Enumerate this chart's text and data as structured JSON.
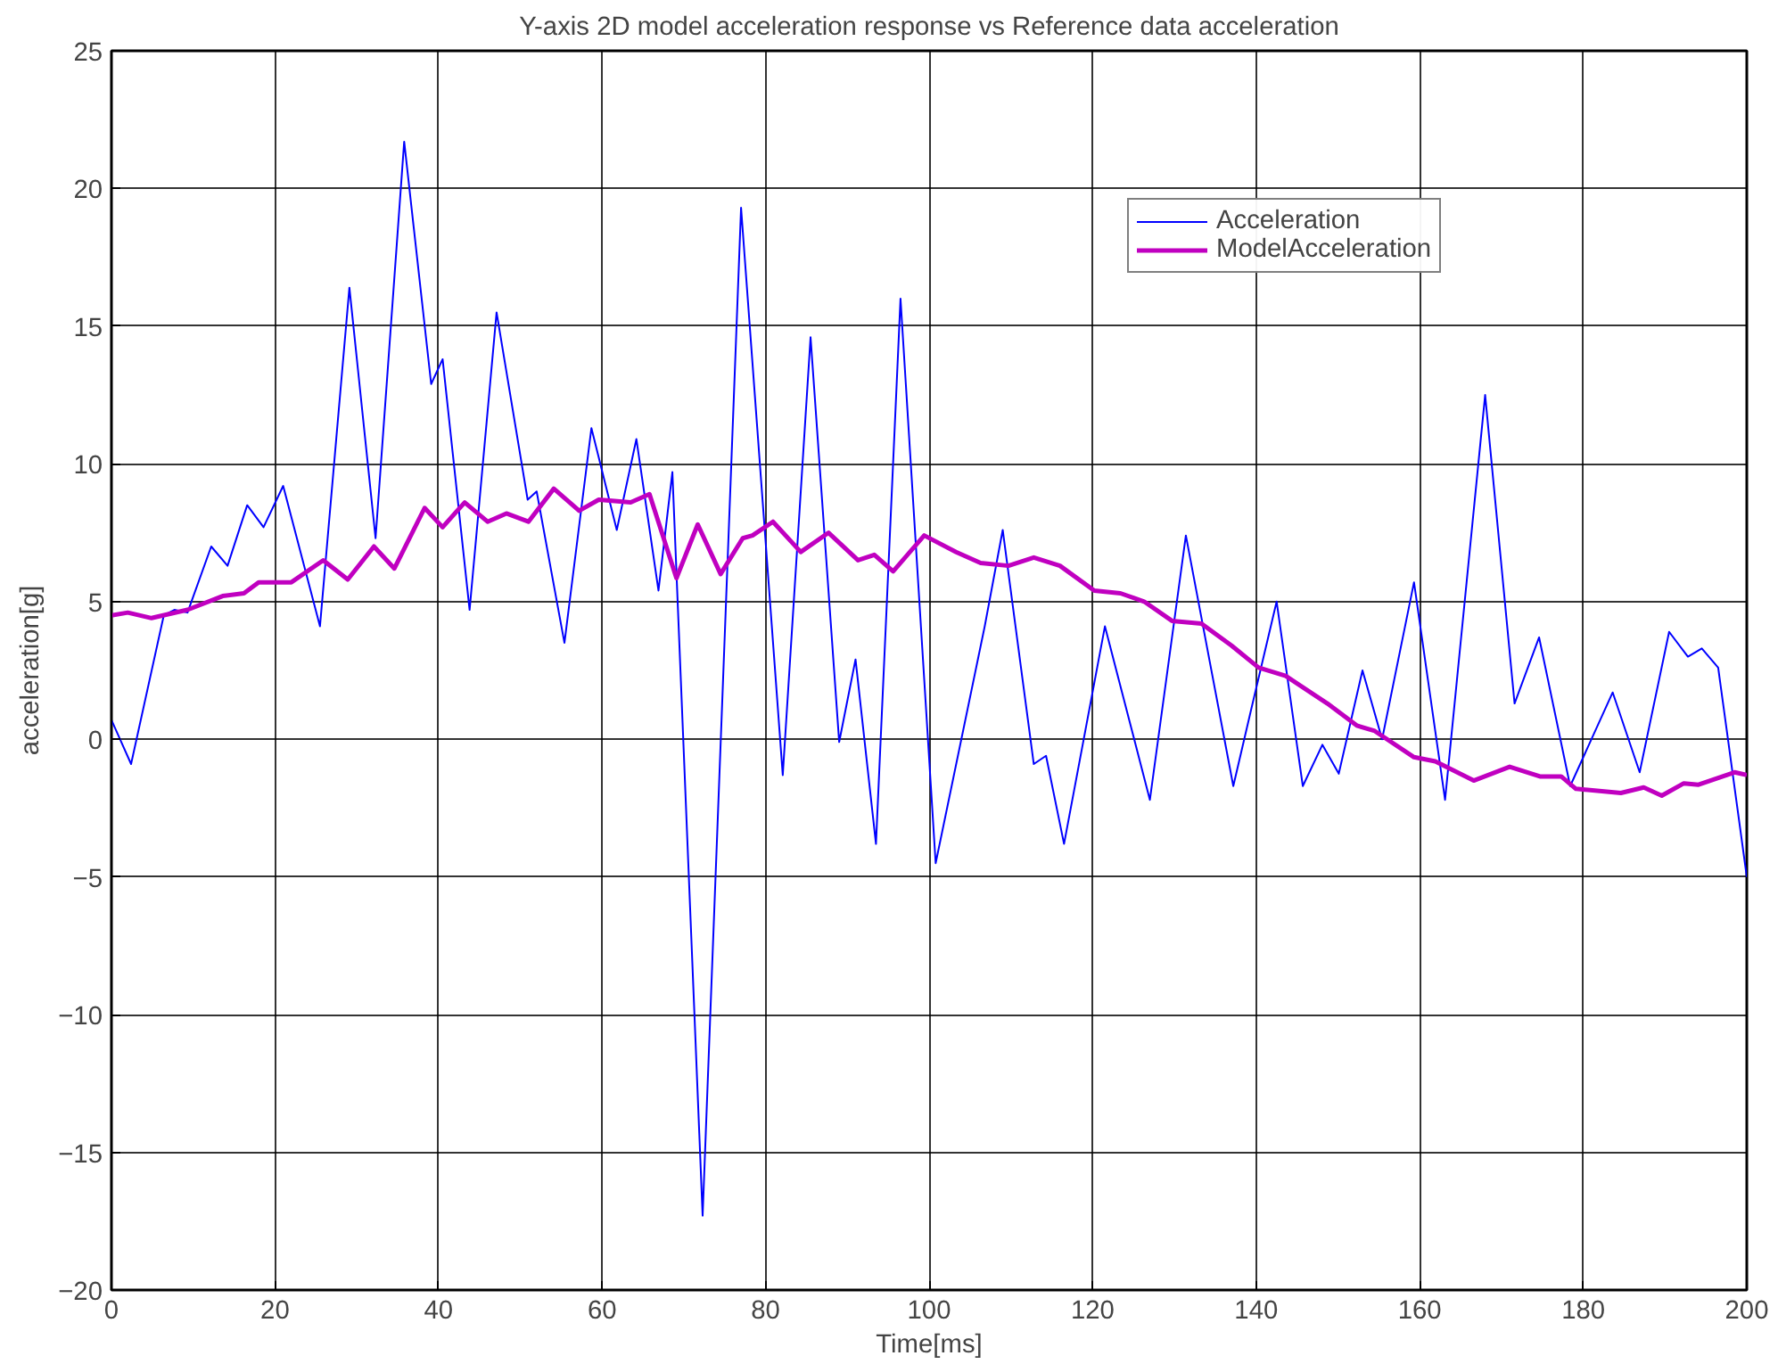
{
  "chart_data": {
    "type": "line",
    "title": "Y-axis 2D model acceleration response vs Reference data acceleration",
    "xlabel": "Time[ms]",
    "ylabel": "acceleration[g]",
    "xlim": [
      0,
      200
    ],
    "ylim": [
      -20,
      25
    ],
    "xticks": [
      0,
      20,
      40,
      60,
      80,
      100,
      120,
      140,
      160,
      180,
      200
    ],
    "yticks": [
      -20,
      -15,
      -10,
      -5,
      0,
      5,
      10,
      15,
      20,
      25
    ],
    "grid": true,
    "legend": "top right",
    "marker": "none",
    "line_style": "solid",
    "series": [
      {
        "name": "Acceleration",
        "color": "#0000ff",
        "x": [
          0,
          2.4,
          6.4,
          7.7,
          9.3,
          12.2,
          14.2,
          16.6,
          18.6,
          21.0,
          25.5,
          29.1,
          32.3,
          35.8,
          39.1,
          40.5,
          43.8,
          47.1,
          50.9,
          52.0,
          55.4,
          58.7,
          61.8,
          64.2,
          66.9,
          68.6,
          72.3,
          77.0,
          82.1,
          85.5,
          89.0,
          91.0,
          93.5,
          96.5,
          100.8,
          106.8,
          109.0,
          112.8,
          114.3,
          116.5,
          121.5,
          127.0,
          131.4,
          137.2,
          139.4,
          142.5,
          145.7,
          148.1,
          150.1,
          153.0,
          155.4,
          159.3,
          163.1,
          168.0,
          171.6,
          174.6,
          178.4,
          183.6,
          186.9,
          190.5,
          192.8,
          194.5,
          196.5,
          200
        ],
        "values": [
          0.7,
          -0.9,
          4.5,
          4.7,
          4.6,
          7.0,
          6.3,
          8.5,
          7.7,
          9.2,
          4.1,
          16.4,
          7.3,
          21.7,
          12.9,
          13.8,
          4.7,
          15.5,
          8.7,
          9.0,
          3.5,
          11.3,
          7.6,
          10.9,
          5.4,
          9.7,
          -17.3,
          19.3,
          -1.3,
          14.6,
          -0.1,
          2.9,
          -3.8,
          16.0,
          -4.5,
          4.1,
          7.6,
          -0.9,
          -0.6,
          -3.8,
          4.1,
          -2.2,
          7.4,
          -1.7,
          1.1,
          5.0,
          -1.7,
          -0.2,
          -1.25,
          2.5,
          0.0,
          5.7,
          -2.2,
          12.5,
          1.3,
          3.7,
          -1.7,
          1.7,
          -1.2,
          3.9,
          3.0,
          3.3,
          2.6,
          -5.0
        ]
      },
      {
        "name": "ModelAcceleration",
        "color": "#c000c0",
        "x": [
          0,
          2,
          4.9,
          9.3,
          13.6,
          16.2,
          18.0,
          22.0,
          25.9,
          28.9,
          32.1,
          34.6,
          38.3,
          40.5,
          43.2,
          46.0,
          48.3,
          51.0,
          54.1,
          57.2,
          59.6,
          63.5,
          65.8,
          69.1,
          71.7,
          74.5,
          77.2,
          78.4,
          80.9,
          84.3,
          87.7,
          91.3,
          93.3,
          95.6,
          99.4,
          103.3,
          106.3,
          109.7,
          112.8,
          116.0,
          120.2,
          123.4,
          126.3,
          129.7,
          133.3,
          137.0,
          140.3,
          143.6,
          148.7,
          152.3,
          154.5,
          159.3,
          161.9,
          166.6,
          171.0,
          174.7,
          177.3,
          179.1,
          184.6,
          187.4,
          189.6,
          192.3,
          194.1,
          198.5,
          200
        ],
        "values": [
          4.5,
          4.6,
          4.4,
          4.7,
          5.2,
          5.3,
          5.7,
          5.7,
          6.5,
          5.8,
          7.0,
          6.2,
          8.4,
          7.7,
          8.6,
          7.9,
          8.2,
          7.9,
          9.1,
          8.3,
          8.7,
          8.6,
          8.9,
          5.85,
          7.8,
          6.0,
          7.3,
          7.4,
          7.9,
          6.8,
          7.5,
          6.5,
          6.7,
          6.1,
          7.4,
          6.8,
          6.4,
          6.3,
          6.6,
          6.3,
          5.4,
          5.3,
          5.0,
          4.3,
          4.2,
          3.4,
          2.6,
          2.3,
          1.3,
          0.5,
          0.3,
          -0.65,
          -0.8,
          -1.5,
          -1.0,
          -1.35,
          -1.35,
          -1.8,
          -1.95,
          -1.75,
          -2.05,
          -1.6,
          -1.65,
          -1.2,
          -1.3
        ]
      }
    ]
  }
}
